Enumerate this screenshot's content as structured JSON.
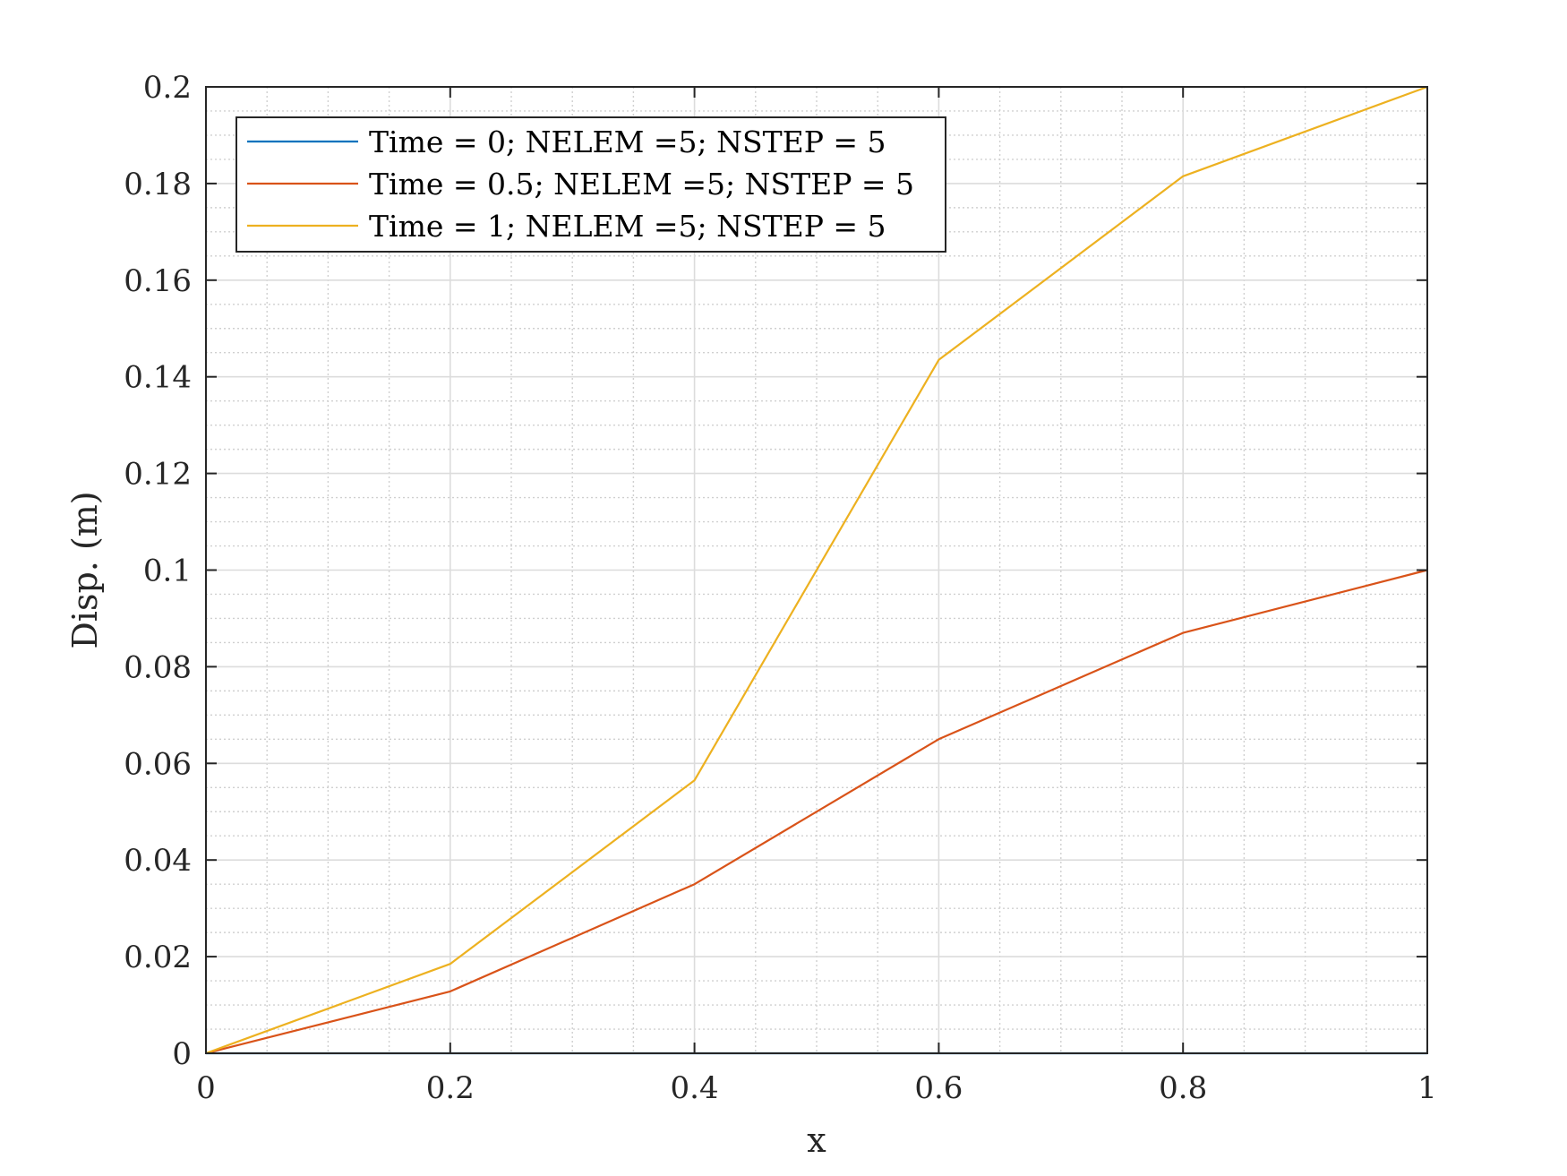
{
  "chart_data": {
    "type": "line",
    "xlabel": "x",
    "ylabel": "Disp. (m)",
    "xlim": [
      0,
      1
    ],
    "ylim": [
      0,
      0.2
    ],
    "xticks": [
      "0",
      "0.2",
      "0.4",
      "0.6",
      "0.8",
      "1"
    ],
    "yticks": [
      "0",
      "0.02",
      "0.04",
      "0.06",
      "0.08",
      "0.1",
      "0.12",
      "0.14",
      "0.16",
      "0.18",
      "0.2"
    ],
    "grid": true,
    "minor_grid": true,
    "legend_position": "top-left",
    "x": [
      0,
      0.2,
      0.4,
      0.6,
      0.8,
      1
    ],
    "series": [
      {
        "name": "Time = 0; NELEM =5; NSTEP = 5",
        "color": "#0072BD",
        "values": [
          0,
          0,
          0,
          0,
          0,
          0
        ]
      },
      {
        "name": "Time = 0.5; NELEM =5; NSTEP = 5",
        "color": "#D95319",
        "values": [
          0,
          0.0128,
          0.035,
          0.065,
          0.087,
          0.1
        ]
      },
      {
        "name": "Time = 1; NELEM =5; NSTEP = 5",
        "color": "#EDB120",
        "values": [
          0,
          0.0185,
          0.0565,
          0.1435,
          0.1815,
          0.2
        ]
      }
    ]
  }
}
